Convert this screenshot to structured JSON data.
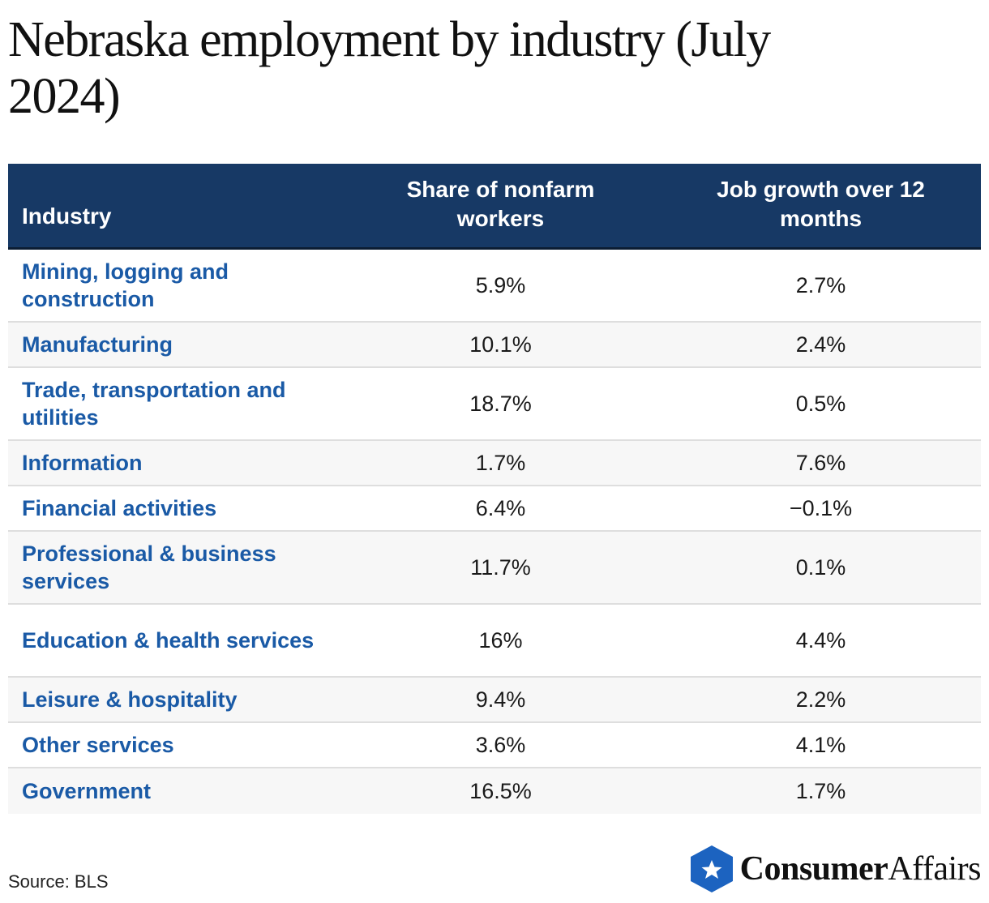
{
  "title": "Nebraska employment by industry (July 2024)",
  "chart_data": {
    "type": "table",
    "title": "Nebraska employment by industry (July 2024)",
    "columns": [
      "Industry",
      "Share of nonfarm workers",
      "Job growth over 12 months"
    ],
    "rows": [
      {
        "industry": "Mining, logging and construction",
        "share": "5.9%",
        "growth": "2.7%"
      },
      {
        "industry": "Manufacturing",
        "share": "10.1%",
        "growth": "2.4%"
      },
      {
        "industry": "Trade, transportation and utilities",
        "share": "18.7%",
        "growth": "0.5%"
      },
      {
        "industry": "Information",
        "share": "1.7%",
        "growth": "7.6%"
      },
      {
        "industry": "Financial activities",
        "share": "6.4%",
        "growth": "−0.1%"
      },
      {
        "industry": "Professional & business services",
        "share": "11.7%",
        "growth": "0.1%"
      },
      {
        "industry": "Education & health services",
        "share": "16%",
        "growth": "4.4%"
      },
      {
        "industry": "Leisure & hospitality",
        "share": "9.4%",
        "growth": "2.2%"
      },
      {
        "industry": "Other services",
        "share": "3.6%",
        "growth": "4.1%"
      },
      {
        "industry": "Government",
        "share": "16.5%",
        "growth": "1.7%"
      }
    ]
  },
  "source": "Source: BLS",
  "logo": {
    "bold": "Consumer",
    "regular": "Affairs",
    "icon": "star-shield-icon"
  },
  "colors": {
    "header_bg": "#173965",
    "industry_text": "#1a5aa6",
    "logo_blue": "#1c63c0"
  }
}
